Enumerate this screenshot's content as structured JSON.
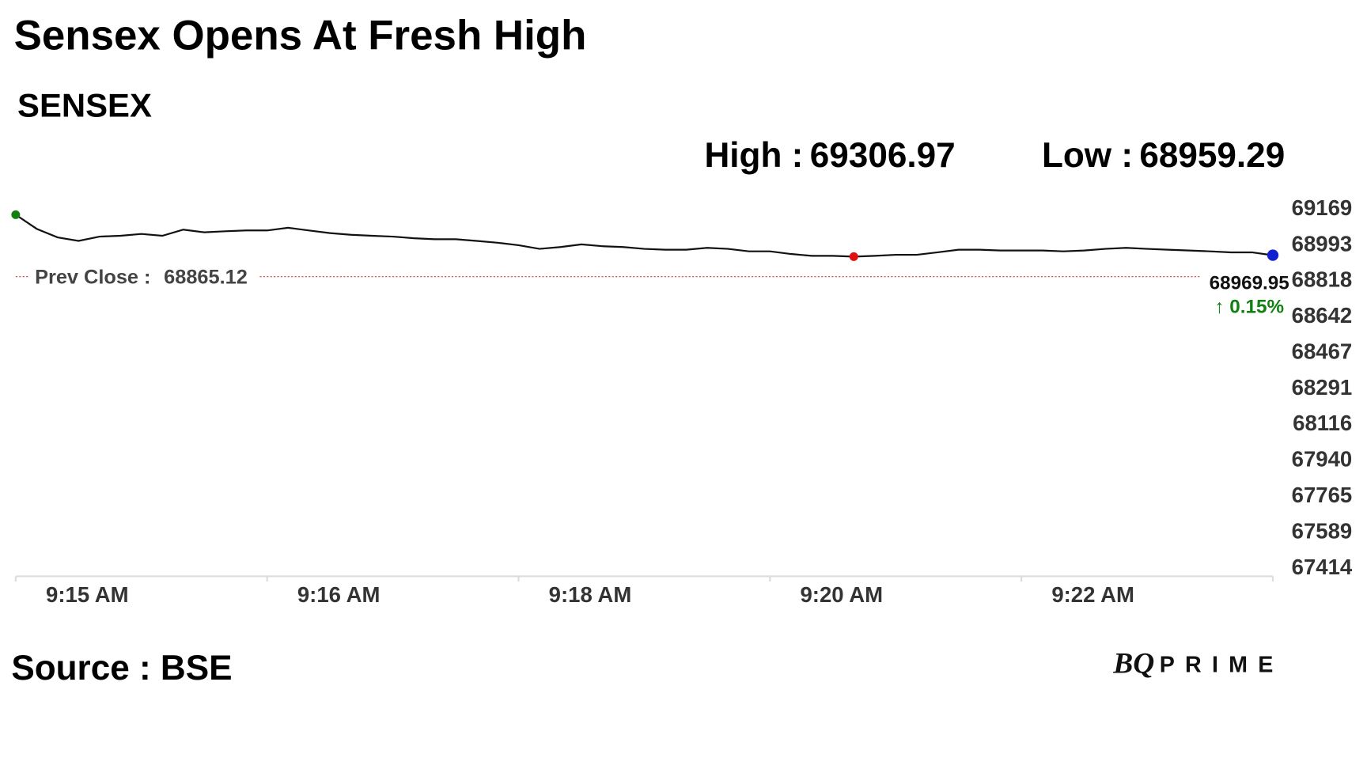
{
  "chart_data": {
    "type": "line",
    "title": "Sensex Opens At Fresh High",
    "subtitle": "SENSEX",
    "high_label": "High :",
    "high": 69306.97,
    "low_label": "Low :",
    "low": 68959.29,
    "prev_close_label": "Prev Close :",
    "prev_close": 68865.12,
    "prev_close_color": "#d04040",
    "change": "↑ 0.15%",
    "change_color": "#108010",
    "source": "Source : BSE",
    "logo": "BQ",
    "logo_suffix": "PRIME",
    "categories": [
      null,
      null,
      null,
      "9:15 AM",
      null,
      null,
      null,
      null,
      null,
      null,
      null,
      null,
      null,
      null,
      null,
      "9:16 AM",
      null,
      null,
      null,
      null,
      null,
      null,
      null,
      null,
      null,
      null,
      null,
      "9:18 AM",
      null,
      null,
      null,
      null,
      null,
      null,
      null,
      null,
      null,
      null,
      null,
      "9:20 AM",
      null,
      null,
      null,
      null,
      null,
      null,
      null,
      null,
      null,
      null,
      null,
      "9:22 AM",
      null,
      null,
      null,
      null,
      null,
      null,
      null,
      null,
      null
    ],
    "series": [
      {
        "name": "SENSEX",
        "color": "#111111",
        "values": [
          69168,
          69099,
          69057,
          69040,
          69061,
          69065,
          69074,
          69065,
          69095,
          69082,
          69087,
          69091,
          69091,
          69104,
          69091,
          69078,
          69070,
          69065,
          69061,
          69053,
          69048,
          69048,
          69040,
          69031,
          69019,
          69001,
          69010,
          69023,
          69014,
          69010,
          69001,
          68997,
          68997,
          69006,
          69001,
          68989,
          68989,
          68976,
          68967,
          68967,
          68963,
          68967,
          68972,
          68972,
          68984,
          68997,
          68997,
          68993,
          68993,
          68993,
          68989,
          68993,
          69001,
          69006,
          69001,
          68997,
          68993,
          68989,
          68984,
          68984,
          68969.95
        ]
      }
    ],
    "start_color": "#108010",
    "low_color": "#e01010",
    "end_color": "#1020d0",
    "low_index": 40,
    "ylim": [
      67414,
      69169
    ],
    "yticks": [
      69169,
      68993,
      68818,
      68642,
      68467,
      68291,
      68116,
      67940,
      67765,
      67589,
      67414
    ],
    "grid": false
  }
}
